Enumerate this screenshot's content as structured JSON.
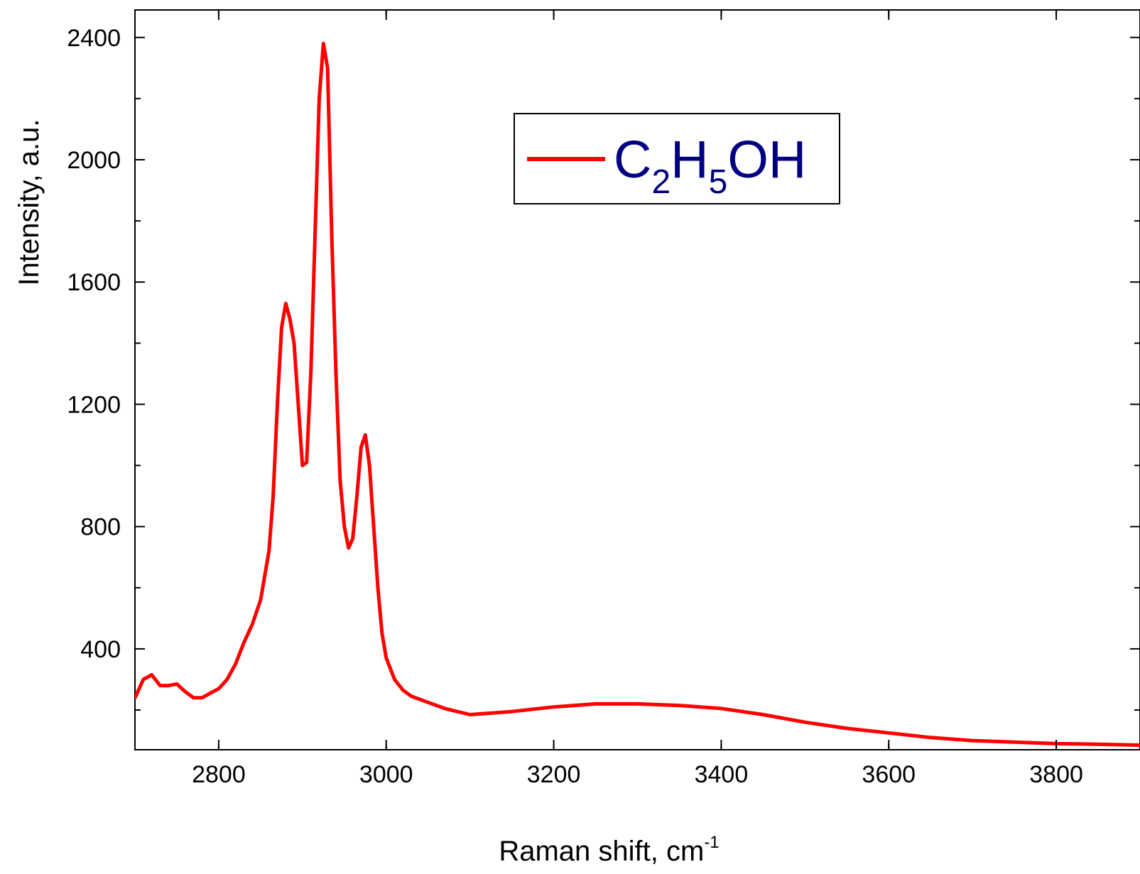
{
  "chart_data": {
    "type": "line",
    "title": "",
    "xlabel": "Raman shift, cm",
    "xlabel_superscript": "-1",
    "ylabel": "Intensity, a.u.",
    "xlim": [
      2700,
      3900
    ],
    "ylim": [
      70,
      2490
    ],
    "x_ticks": [
      2800,
      3000,
      3200,
      3400,
      3600,
      3800
    ],
    "x_tick_labels": [
      "2800",
      "3000",
      "3200",
      "3400",
      "3600",
      "3800"
    ],
    "y_ticks": [
      400,
      800,
      1200,
      1600,
      2000,
      2400
    ],
    "y_tick_labels": [
      "400",
      "800",
      "1200",
      "1600",
      "2000",
      "2400"
    ],
    "grid": false,
    "legend": {
      "position": "top-center",
      "entries": [
        {
          "series": 0,
          "label_parts": [
            {
              "text": "C",
              "sub": false
            },
            {
              "text": "2",
              "sub": true
            },
            {
              "text": "H",
              "sub": false
            },
            {
              "text": "5",
              "sub": true
            },
            {
              "text": "OH",
              "sub": false
            }
          ]
        }
      ]
    },
    "series": [
      {
        "label": "C2H5OH",
        "color": "#ff0000",
        "legend_text_color": "#000080",
        "x": [
          2700,
          2710,
          2720,
          2730,
          2740,
          2750,
          2760,
          2770,
          2780,
          2790,
          2800,
          2810,
          2820,
          2830,
          2840,
          2850,
          2860,
          2865,
          2870,
          2875,
          2880,
          2885,
          2890,
          2895,
          2900,
          2905,
          2910,
          2915,
          2920,
          2925,
          2930,
          2935,
          2940,
          2945,
          2950,
          2955,
          2960,
          2965,
          2970,
          2975,
          2980,
          2985,
          2990,
          2995,
          3000,
          3010,
          3020,
          3030,
          3050,
          3070,
          3100,
          3150,
          3200,
          3250,
          3300,
          3350,
          3400,
          3450,
          3500,
          3550,
          3600,
          3650,
          3700,
          3750,
          3800,
          3850,
          3900
        ],
        "y": [
          240,
          300,
          315,
          280,
          280,
          285,
          260,
          240,
          240,
          255,
          270,
          300,
          350,
          420,
          480,
          560,
          720,
          900,
          1200,
          1450,
          1530,
          1480,
          1400,
          1200,
          1000,
          1010,
          1300,
          1750,
          2200,
          2380,
          2300,
          1750,
          1300,
          950,
          800,
          730,
          760,
          900,
          1060,
          1100,
          1000,
          800,
          600,
          450,
          370,
          300,
          265,
          245,
          225,
          205,
          185,
          195,
          210,
          220,
          220,
          215,
          205,
          185,
          160,
          140,
          125,
          110,
          100,
          95,
          90,
          88,
          85
        ]
      }
    ]
  }
}
